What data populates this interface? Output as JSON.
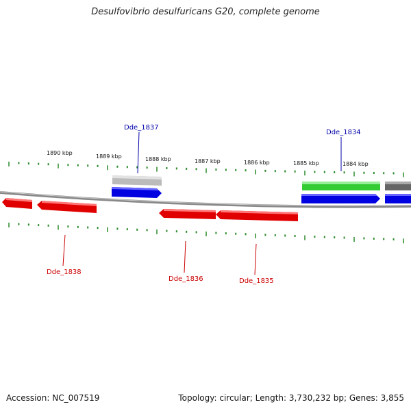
{
  "title": "Desulfovibrio desulfuricans G20, complete genome",
  "footer": {
    "accession": "Accession: NC_007519",
    "summary": "Topology: circular; Length: 3,730,232 bp; Genes: 3,855"
  },
  "colors": {
    "backbone": "#888888",
    "tick": "#2a8a2a",
    "forward_gene": "#0000e0",
    "reverse_gene": "#e00000",
    "rna_gene": "#33cc33",
    "pseudo_gene": "#bbbbbb",
    "other_gene": "#666666"
  },
  "scale_labels": [
    "1890 kbp",
    "1889 kbp",
    "1888 kbp",
    "1887 kbp",
    "1886 kbp",
    "1885 kbp",
    "1884 kbp"
  ],
  "gene_labels": {
    "dde_1837": "Dde_1837",
    "dde_1834": "Dde_1834",
    "dde_1838": "Dde_1838",
    "dde_1836": "Dde_1836",
    "dde_1835": "Dde_1835"
  }
}
